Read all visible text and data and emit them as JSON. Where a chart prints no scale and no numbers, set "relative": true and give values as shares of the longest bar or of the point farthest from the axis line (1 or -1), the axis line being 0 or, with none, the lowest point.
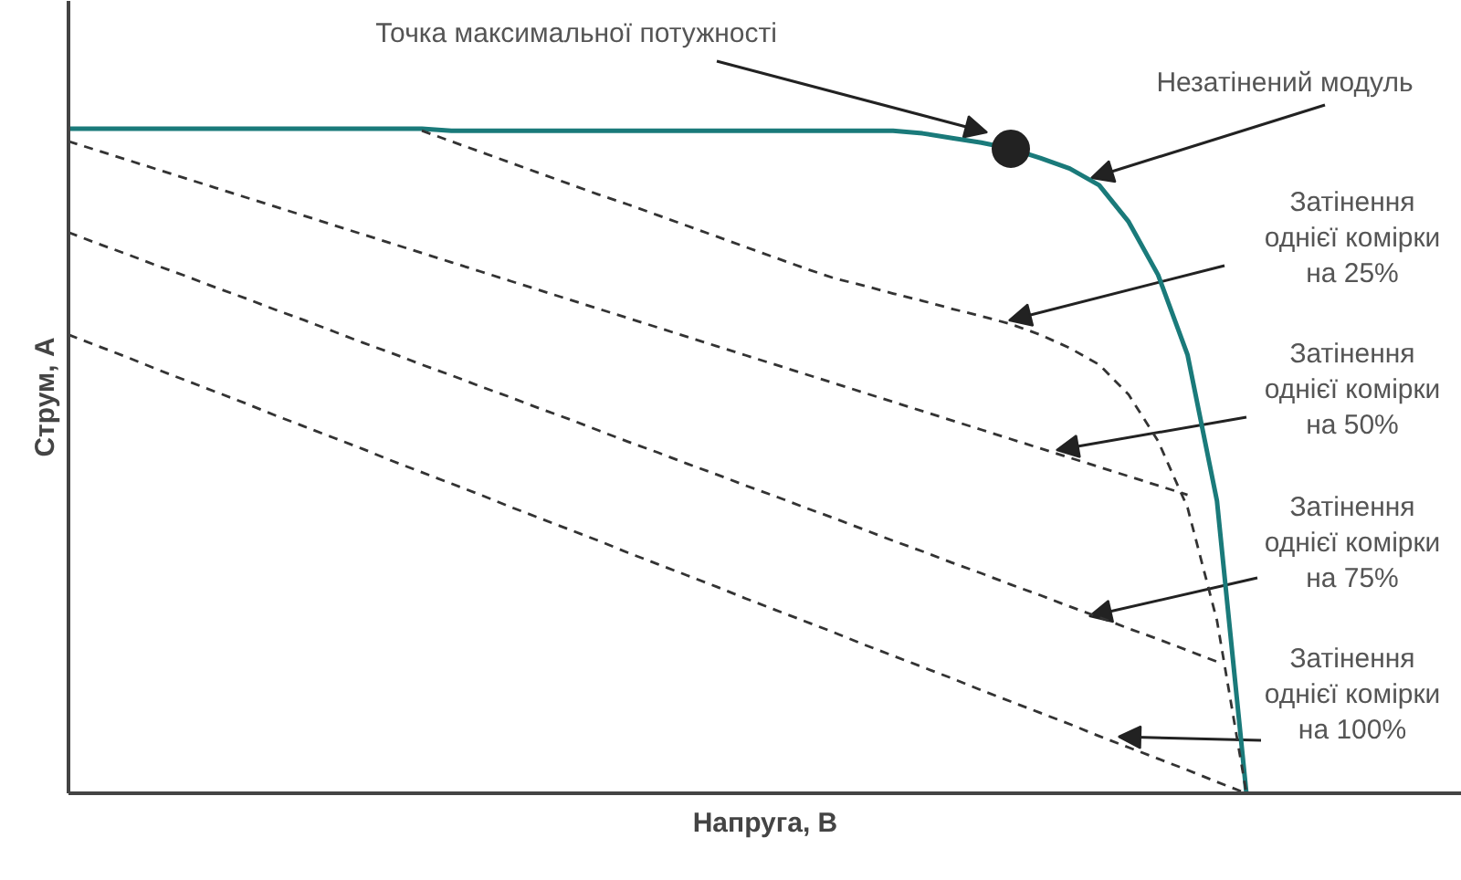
{
  "chart_data": {
    "type": "line",
    "relative": true,
    "xlabel": "Напруга, В",
    "ylabel": "Струм, А",
    "marker": "none",
    "categories": [
      null,
      null,
      null,
      null,
      null,
      null,
      null,
      null,
      null,
      null,
      null,
      null,
      null,
      null,
      null,
      null,
      null,
      null,
      null,
      null,
      null,
      null,
      null,
      null,
      null,
      null,
      null,
      null,
      null,
      null,
      null,
      null,
      null,
      null,
      null,
      null,
      null,
      null,
      null,
      null,
      null
    ],
    "series": [
      {
        "color": "#1a7a7a",
        "line_style": "solid",
        "values": [
          1.0,
          1.0,
          1.0,
          1.0,
          1.0,
          1.0,
          1.0,
          1.0,
          1.0,
          1.0,
          1.0,
          1.0,
          1.0,
          0.997,
          0.997,
          0.997,
          0.997,
          0.997,
          0.997,
          0.997,
          0.997,
          0.997,
          0.997,
          0.997,
          0.997,
          0.997,
          0.997,
          0.997,
          0.997,
          0.993,
          0.986,
          0.979,
          0.97,
          0.956,
          0.94,
          0.915,
          0.86,
          0.78,
          0.66,
          0.44,
          0
        ]
      },
      {
        "color": "#333333",
        "line_style": "dashed",
        "values": [
          null,
          null,
          null,
          null,
          null,
          null,
          null,
          null,
          null,
          null,
          null,
          null,
          0.997,
          0.981,
          0.965,
          0.949,
          0.933,
          0.917,
          0.901,
          0.886,
          0.87,
          0.854,
          0.838,
          0.822,
          0.806,
          0.79,
          0.775,
          0.764,
          0.752,
          0.741,
          0.729,
          0.718,
          0.706,
          0.69,
          0.67,
          0.645,
          0.6,
          0.53,
          0.43,
          0.26,
          0
        ]
      },
      {
        "color": "#333333",
        "line_style": "dashed",
        "values": [
          0.981,
          0.967,
          0.953,
          0.939,
          0.925,
          0.911,
          0.897,
          0.883,
          0.869,
          0.855,
          0.841,
          0.827,
          0.813,
          0.799,
          0.785,
          0.771,
          0.757,
          0.743,
          0.729,
          0.715,
          0.701,
          0.687,
          0.673,
          0.659,
          0.645,
          0.631,
          0.617,
          0.603,
          0.589,
          0.575,
          0.561,
          0.547,
          0.533,
          0.519,
          0.505,
          0.491,
          0.477,
          0.463,
          0.449,
          null,
          null
        ]
      },
      {
        "color": "#333333",
        "line_style": "dashed",
        "values": [
          0.844,
          0.827,
          0.811,
          0.794,
          0.778,
          0.761,
          0.745,
          0.728,
          0.712,
          0.695,
          0.678,
          0.662,
          0.645,
          0.629,
          0.612,
          0.596,
          0.579,
          0.563,
          0.546,
          0.529,
          0.513,
          0.496,
          0.48,
          0.463,
          0.447,
          0.43,
          0.414,
          0.397,
          0.38,
          0.364,
          0.347,
          0.331,
          0.314,
          0.298,
          0.281,
          0.265,
          0.248,
          0.232,
          0.215,
          0.198,
          null
        ]
      },
      {
        "color": "#333333",
        "line_style": "dashed",
        "values": [
          0.69,
          0.673,
          0.656,
          0.638,
          0.621,
          0.604,
          0.587,
          0.569,
          0.552,
          0.535,
          0.518,
          0.5,
          0.483,
          0.466,
          0.449,
          0.431,
          0.414,
          0.397,
          0.38,
          0.362,
          0.345,
          0.328,
          0.311,
          0.293,
          0.276,
          0.259,
          0.242,
          0.224,
          0.207,
          0.19,
          0.173,
          0.155,
          0.138,
          0.121,
          0.104,
          0.086,
          0.069,
          0.052,
          0.035,
          0.017,
          0
        ]
      }
    ],
    "annotations": [
      "Точка максимальної потужності",
      "Незатінений модуль",
      "Затінення однієї комірки на 25%",
      "Затінення однієї комірки на 50%",
      "Затінення однієї комірки на 75%",
      "Затінення однієї комірки на 100%"
    ]
  }
}
